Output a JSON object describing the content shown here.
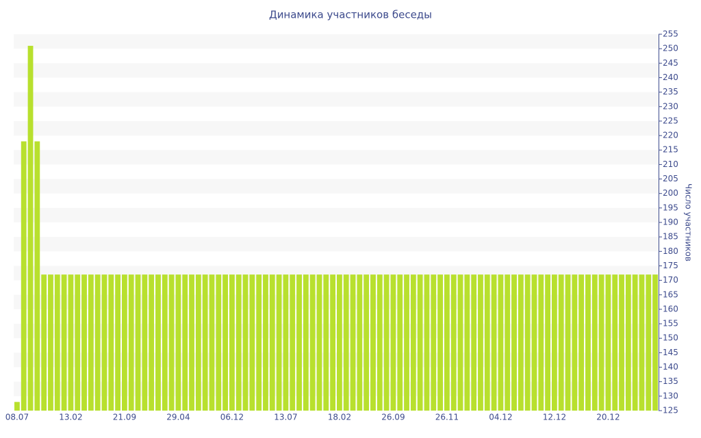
{
  "chart_data": {
    "type": "bar",
    "title": "Динамика участников беседы",
    "y_label": "Число участников",
    "categories": [
      "08.07",
      null,
      null,
      null,
      null,
      null,
      null,
      null,
      "13.02",
      null,
      null,
      null,
      null,
      null,
      null,
      null,
      "21.09",
      null,
      null,
      null,
      null,
      null,
      null,
      null,
      "29.04",
      null,
      null,
      null,
      null,
      null,
      null,
      null,
      "06.12",
      null,
      null,
      null,
      null,
      null,
      null,
      null,
      "13.07",
      null,
      null,
      null,
      null,
      null,
      null,
      null,
      "18.02",
      null,
      null,
      null,
      null,
      null,
      null,
      null,
      "26.09",
      null,
      null,
      null,
      null,
      null,
      null,
      null,
      "26.11",
      null,
      null,
      null,
      null,
      null,
      null,
      null,
      "04.12",
      null,
      null,
      null,
      null,
      null,
      null,
      null,
      "12.12",
      null,
      null,
      null,
      null,
      null,
      null,
      null,
      "20.12",
      null,
      null,
      null,
      null,
      null,
      null,
      null
    ],
    "values": [
      128,
      218,
      251,
      218,
      172,
      172,
      172,
      172,
      172,
      172,
      172,
      172,
      172,
      172,
      172,
      172,
      172,
      172,
      172,
      172,
      172,
      172,
      172,
      172,
      172,
      172,
      172,
      172,
      172,
      172,
      172,
      172,
      172,
      172,
      172,
      172,
      172,
      172,
      172,
      172,
      172,
      172,
      172,
      172,
      172,
      172,
      172,
      172,
      172,
      172,
      172,
      172,
      172,
      172,
      172,
      172,
      172,
      172,
      172,
      172,
      172,
      172,
      172,
      172,
      172,
      172,
      172,
      172,
      172,
      172,
      172,
      172,
      172,
      172,
      172,
      172,
      172,
      172,
      172,
      172,
      172,
      172,
      172,
      172,
      172,
      172,
      172,
      172,
      172,
      172,
      172,
      172,
      172,
      172,
      172,
      172
    ],
    "color": "#b8e02e",
    "ylim": [
      125,
      255
    ],
    "yticks": [
      125,
      130,
      135,
      140,
      145,
      150,
      155,
      160,
      165,
      170,
      175,
      180,
      185,
      190,
      195,
      200,
      205,
      210,
      215,
      220,
      225,
      230,
      235,
      240,
      245,
      250,
      255
    ],
    "grid": true
  }
}
